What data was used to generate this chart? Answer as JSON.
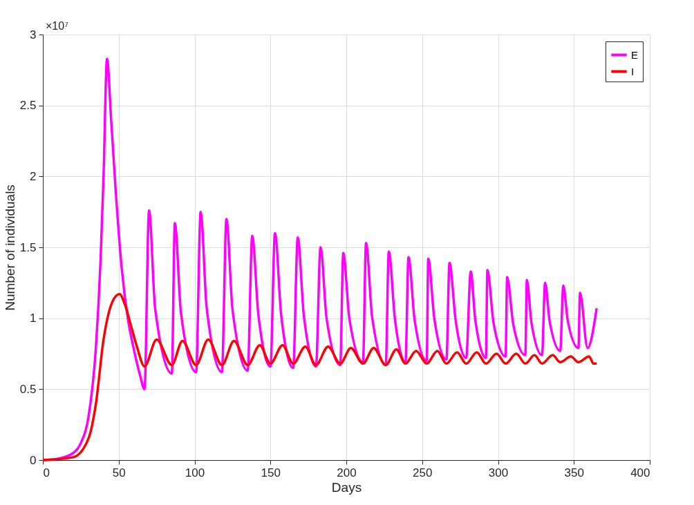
{
  "chart_data": {
    "type": "line",
    "xlabel": "Days",
    "ylabel": "Number of individuals",
    "annotations": [
      "×10⁷"
    ],
    "xlim": [
      0,
      400
    ],
    "xticks": [
      0,
      50,
      100,
      150,
      200,
      250,
      300,
      350,
      400
    ],
    "ylim": [
      0,
      3
    ],
    "yticks": [
      0,
      0.5,
      1,
      1.5,
      2,
      2.5,
      3
    ],
    "grid": true,
    "legend": "top right",
    "marker": "none",
    "line_style": "solid",
    "series": [
      {
        "name": "E",
        "color": "#ff00ff",
        "x": [
          0,
          10,
          20,
          25,
          30,
          35,
          38,
          40,
          42.3,
          45,
          48,
          52,
          56,
          60,
          64,
          67,
          70,
          74,
          85,
          87,
          91,
          101,
          104,
          108,
          118,
          121,
          125,
          135,
          138,
          142,
          150,
          153,
          157,
          165,
          168,
          172,
          180,
          183,
          187,
          196,
          198,
          202,
          211,
          213,
          217,
          226,
          228,
          232,
          239,
          241,
          245,
          253,
          254,
          258,
          266,
          268,
          272,
          279,
          282,
          285,
          292,
          293,
          297,
          305,
          306,
          310,
          318,
          319,
          322,
          329,
          331,
          334,
          341,
          343,
          346,
          353,
          354,
          359,
          365
        ],
        "values": [
          0,
          0.01,
          0.05,
          0.12,
          0.3,
          0.8,
          1.4,
          2.0,
          2.83,
          2.4,
          1.9,
          1.35,
          1.0,
          0.78,
          0.6,
          0.5,
          1.76,
          1.07,
          0.61,
          1.67,
          1.04,
          0.62,
          1.75,
          1.07,
          0.62,
          1.7,
          1.06,
          0.63,
          1.58,
          1.03,
          0.66,
          1.6,
          1.03,
          0.65,
          1.57,
          1.02,
          0.66,
          1.5,
          1.0,
          0.67,
          1.46,
          1.0,
          0.69,
          1.53,
          1.01,
          0.67,
          1.47,
          1.0,
          0.69,
          1.43,
          0.99,
          0.7,
          1.42,
          1.0,
          0.71,
          1.39,
          0.99,
          0.72,
          1.33,
          0.99,
          0.72,
          1.34,
          0.97,
          0.73,
          1.29,
          0.96,
          0.74,
          1.27,
          0.97,
          0.74,
          1.25,
          0.98,
          0.77,
          1.23,
          0.98,
          0.79,
          1.18,
          0.79,
          1.07
        ]
      },
      {
        "name": "I",
        "color": "#ff0000",
        "x": [
          0,
          20,
          30,
          35,
          40,
          43,
          47,
          50.5,
          54,
          58,
          62,
          67,
          75,
          85,
          92,
          101,
          109,
          118,
          126,
          135,
          143,
          150,
          158,
          165,
          173,
          180,
          188,
          196,
          203,
          211,
          218,
          226,
          233,
          239,
          246,
          253,
          260,
          266,
          273,
          279,
          286,
          292,
          299,
          305,
          312,
          318,
          324,
          329,
          336,
          341,
          348,
          353,
          360,
          363,
          365
        ],
        "values": [
          0,
          0.02,
          0.15,
          0.4,
          0.85,
          1.02,
          1.14,
          1.17,
          1.1,
          0.95,
          0.8,
          0.66,
          0.85,
          0.67,
          0.84,
          0.67,
          0.85,
          0.67,
          0.84,
          0.67,
          0.81,
          0.68,
          0.81,
          0.68,
          0.8,
          0.67,
          0.8,
          0.68,
          0.79,
          0.68,
          0.79,
          0.67,
          0.78,
          0.68,
          0.77,
          0.68,
          0.77,
          0.68,
          0.76,
          0.68,
          0.76,
          0.68,
          0.75,
          0.68,
          0.75,
          0.68,
          0.74,
          0.68,
          0.74,
          0.69,
          0.73,
          0.69,
          0.73,
          0.68,
          0.68
        ]
      }
    ]
  }
}
